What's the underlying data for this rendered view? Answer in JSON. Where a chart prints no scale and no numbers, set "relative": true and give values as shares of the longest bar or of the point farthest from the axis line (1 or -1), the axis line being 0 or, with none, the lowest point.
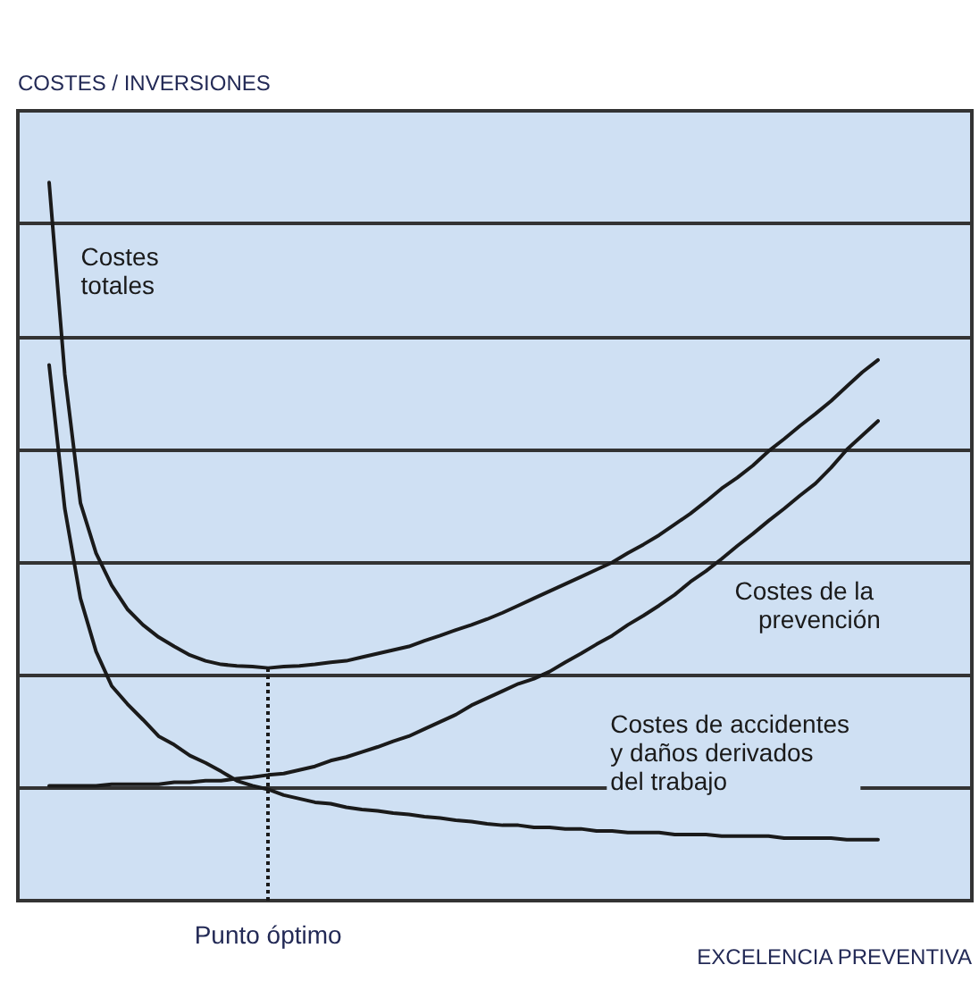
{
  "chart_data": {
    "type": "line",
    "relative": true,
    "ylabel": "COSTES / INVERSIONES",
    "xlabel": "EXCELENCIA PREVENTIVA",
    "grid": "y",
    "legend": false,
    "marker": "none",
    "line_style": "solid",
    "categories": [
      null,
      null,
      null,
      null,
      null,
      null,
      null,
      null,
      null,
      null,
      null,
      null,
      null,
      null,
      null,
      null,
      null,
      null,
      null,
      null,
      null,
      null,
      null,
      null,
      null,
      null,
      null,
      null,
      null,
      null,
      null,
      null,
      null,
      null,
      null,
      null,
      null,
      null,
      null,
      null,
      null,
      null,
      null,
      null,
      null,
      null,
      null,
      null,
      null,
      null,
      null,
      null,
      null,
      null,
      null,
      null,
      null,
      null,
      null,
      null,
      null,
      null
    ],
    "series": [
      {
        "name": "Costes totales",
        "color": "#1a1a1a",
        "values": [
          null,
          null,
          1.0,
          0.733,
          0.554,
          0.484,
          0.439,
          0.406,
          0.384,
          0.367,
          0.354,
          0.342,
          0.334,
          0.329,
          0.327,
          0.326,
          0.324,
          0.326,
          0.327,
          0.329,
          0.332,
          0.334,
          0.339,
          0.344,
          0.349,
          0.354,
          0.362,
          0.369,
          0.377,
          0.384,
          0.392,
          0.401,
          0.411,
          0.421,
          0.431,
          0.441,
          0.451,
          0.461,
          0.471,
          0.484,
          0.496,
          0.509,
          0.524,
          0.539,
          0.556,
          0.574,
          0.589,
          0.606,
          0.626,
          0.643,
          0.661,
          0.678,
          0.696,
          0.716,
          0.736,
          0.753,
          null,
          null,
          null,
          null,
          null,
          null
        ]
      },
      {
        "name": "Costes de la prevención",
        "color": "#1a1a1a",
        "values": [
          null,
          null,
          0.16,
          0.16,
          0.16,
          0.16,
          0.162,
          0.162,
          0.162,
          0.162,
          0.165,
          0.165,
          0.167,
          0.167,
          0.17,
          0.172,
          0.175,
          0.177,
          0.182,
          0.187,
          0.195,
          0.2,
          0.207,
          0.214,
          0.222,
          0.229,
          0.239,
          0.249,
          0.259,
          0.272,
          0.282,
          0.292,
          0.302,
          0.309,
          0.319,
          0.332,
          0.344,
          0.357,
          0.369,
          0.384,
          0.397,
          0.411,
          0.426,
          0.444,
          0.459,
          0.476,
          0.494,
          0.511,
          0.529,
          0.546,
          0.564,
          0.581,
          0.603,
          0.628,
          0.648,
          0.668,
          null,
          null,
          null,
          null,
          null,
          null
        ]
      },
      {
        "name": "Costes de accidentes y daños derivados del trabajo",
        "color": "#1a1a1a",
        "values": [
          null,
          null,
          0.746,
          0.546,
          0.421,
          0.347,
          0.299,
          0.274,
          0.252,
          0.229,
          0.217,
          0.202,
          0.192,
          0.18,
          0.167,
          0.16,
          0.155,
          0.147,
          0.142,
          0.137,
          0.135,
          0.13,
          0.127,
          0.125,
          0.122,
          0.12,
          0.117,
          0.115,
          0.112,
          0.11,
          0.107,
          0.105,
          0.105,
          0.102,
          0.102,
          0.1,
          0.1,
          0.097,
          0.097,
          0.095,
          0.095,
          0.095,
          0.092,
          0.092,
          0.092,
          0.09,
          0.09,
          0.09,
          0.09,
          0.087,
          0.087,
          0.087,
          0.087,
          0.085,
          0.085,
          0.085,
          null,
          null,
          null,
          null,
          null,
          null
        ]
      }
    ],
    "annotations": [
      {
        "text": "Punto óptimo",
        "y": 0.324
      }
    ]
  }
}
